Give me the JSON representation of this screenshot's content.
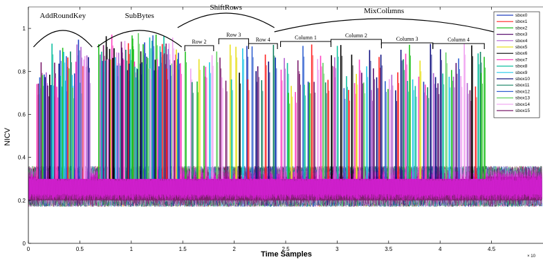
{
  "chart_data": {
    "type": "line",
    "xlabel": "Time Samples",
    "ylabel": "NICV",
    "x_multiplier_label": "× 10",
    "xlim": [
      0,
      5
    ],
    "ylim": [
      0,
      1.1
    ],
    "xticks": [
      0,
      0.5,
      1,
      1.5,
      2,
      2.5,
      3,
      3.5,
      4,
      4.5
    ],
    "xtick_labels": [
      "0",
      "0.5",
      "1",
      "1.5",
      "2",
      "2.5",
      "3",
      "3.5",
      "4",
      "4.5"
    ],
    "yticks": [
      0,
      0.2,
      0.4,
      0.6,
      0.8,
      1
    ],
    "ytick_labels": [
      "0",
      "0.2",
      "0.4",
      "0.6",
      "0.8",
      "1"
    ],
    "noise_floor": {
      "low": 0.17,
      "high": 0.36,
      "mean": 0.25
    },
    "legend_position": "top-right",
    "series": [
      {
        "name": "sbox0",
        "color": "#1f3fbf"
      },
      {
        "name": "sbox1",
        "color": "#ff2020"
      },
      {
        "name": "sbox2",
        "color": "#20c020"
      },
      {
        "name": "sbox3",
        "color": "#5a1070"
      },
      {
        "name": "sbox4",
        "color": "#b060d0"
      },
      {
        "name": "sbox5",
        "color": "#e8e020"
      },
      {
        "name": "sbox6",
        "color": "#000000"
      },
      {
        "name": "sbox7",
        "color": "#ff40c0"
      },
      {
        "name": "sbox8",
        "color": "#10c0a0"
      },
      {
        "name": "sbox9",
        "color": "#20c8e8"
      },
      {
        "name": "sbox10",
        "color": "#101080"
      },
      {
        "name": "sbox11",
        "color": "#108060"
      },
      {
        "name": "sbox12",
        "color": "#3060d0"
      },
      {
        "name": "sbox13",
        "color": "#60d060"
      },
      {
        "name": "sbox14",
        "color": "#f0a0f0"
      },
      {
        "name": "sbox15",
        "color": "#7a1a6a"
      }
    ],
    "phases": [
      {
        "label": "AddRoundKey",
        "x_start": 0.05,
        "x_end": 0.62
      },
      {
        "label": "SubBytes",
        "x_start": 0.67,
        "x_end": 1.49
      },
      {
        "label": "ShiftRows",
        "x_start": 1.45,
        "x_end": 2.39
      },
      {
        "label": "MixColumns",
        "x_start": 2.39,
        "x_end": 4.52
      }
    ],
    "sub_phases": [
      {
        "label": "Row 2",
        "x_start": 1.52,
        "x_end": 1.8
      },
      {
        "label": "Row 3",
        "x_start": 1.85,
        "x_end": 2.14
      },
      {
        "label": "Row 4",
        "x_start": 2.14,
        "x_end": 2.42
      },
      {
        "label": "Column 1",
        "x_start": 2.45,
        "x_end": 2.94
      },
      {
        "label": "Column 2",
        "x_start": 2.94,
        "x_end": 3.43
      },
      {
        "label": "Column 3",
        "x_start": 3.43,
        "x_end": 3.93
      },
      {
        "label": "Column 4",
        "x_start": 3.93,
        "x_end": 4.43
      }
    ],
    "peak_regions": [
      {
        "x_start": 0.08,
        "x_end": 0.6,
        "count": 40,
        "peak_min": 0.72,
        "peak_max": 0.96
      },
      {
        "x_start": 0.68,
        "x_end": 1.48,
        "count": 70,
        "peak_min": 0.8,
        "peak_max": 0.98
      },
      {
        "x_start": 1.52,
        "x_end": 2.42,
        "count": 28,
        "peak_min": 0.75,
        "peak_max": 0.93
      },
      {
        "x_start": 2.45,
        "x_end": 4.45,
        "count": 80,
        "peak_min": 0.7,
        "peak_max": 0.93
      }
    ]
  }
}
